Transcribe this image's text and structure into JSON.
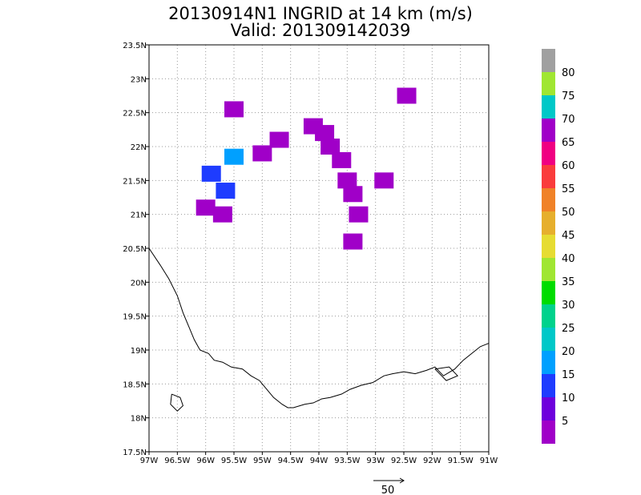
{
  "header": {
    "title_line1": "20130914N1 INGRID at 14 km (m/s)",
    "title_line2": "Valid: 201309142039"
  },
  "map": {
    "lon_range": [
      -97,
      -91
    ],
    "lat_range": [
      17.5,
      23.5
    ],
    "grid": true,
    "x_tick_values": [
      -97,
      -96.5,
      -96,
      -95.5,
      -95,
      -94.5,
      -94,
      -93.5,
      -93,
      -92.5,
      -92,
      -91.5,
      -91
    ],
    "x_tick_labels": [
      "97W",
      "96.5W",
      "96W",
      "95.5W",
      "95W",
      "94.5W",
      "94W",
      "93.5W",
      "93W",
      "92.5W",
      "92W",
      "91.5W",
      "91W"
    ],
    "y_tick_values": [
      23.5,
      23,
      22.5,
      22,
      21.5,
      21,
      20.5,
      20,
      19.5,
      19,
      18.5,
      18,
      17.5
    ],
    "y_tick_labels": [
      "23.5N",
      "23N",
      "22.5N",
      "22N",
      "21.5N",
      "21N",
      "20.5N",
      "20N",
      "19.5N",
      "19N",
      "18.5N",
      "18N",
      "17.5N"
    ]
  },
  "colorbar": {
    "colors": [
      "#a000c8",
      "#6e00dc",
      "#1e3cff",
      "#00a0ff",
      "#00c8c8",
      "#00d28c",
      "#00dc00",
      "#a0e632",
      "#e6dc32",
      "#e6af2d",
      "#f08228",
      "#fa3c3c",
      "#f00082",
      "#a000c8",
      "#00c8c8",
      "#a0e632",
      "#a0a0a0"
    ],
    "labels": [
      "5",
      "10",
      "15",
      "20",
      "25",
      "30",
      "35",
      "40",
      "45",
      "50",
      "55",
      "60",
      "65",
      "70",
      "75",
      "80"
    ]
  },
  "reference_vector": {
    "label": "50"
  },
  "wind_cells": [
    {
      "lon": -94.1,
      "lat": 22.3,
      "speed": 4
    },
    {
      "lon": -93.9,
      "lat": 22.2,
      "speed": 4
    },
    {
      "lon": -93.8,
      "lat": 22.0,
      "speed": 4
    },
    {
      "lon": -93.6,
      "lat": 21.8,
      "speed": 4
    },
    {
      "lon": -93.5,
      "lat": 21.5,
      "speed": 4
    },
    {
      "lon": -93.4,
      "lat": 21.3,
      "speed": 4
    },
    {
      "lon": -93.3,
      "lat": 21.0,
      "speed": 4
    },
    {
      "lon": -93.4,
      "lat": 20.6,
      "speed": 4
    },
    {
      "lon": -94.7,
      "lat": 22.1,
      "speed": 4
    },
    {
      "lon": -95.0,
      "lat": 21.9,
      "speed": 4
    },
    {
      "lon": -95.5,
      "lat": 22.55,
      "speed": 4
    },
    {
      "lon": -92.85,
      "lat": 21.5,
      "speed": 4
    },
    {
      "lon": -96.0,
      "lat": 21.1,
      "speed": 4
    },
    {
      "lon": -95.7,
      "lat": 21.0,
      "speed": 4
    },
    {
      "lon": -95.9,
      "lat": 21.6,
      "speed": 10
    },
    {
      "lon": -95.65,
      "lat": 21.35,
      "speed": 10
    },
    {
      "lon": -95.5,
      "lat": 21.85,
      "speed": 15
    },
    {
      "lon": -92.45,
      "lat": 22.75,
      "speed": 4
    }
  ]
}
